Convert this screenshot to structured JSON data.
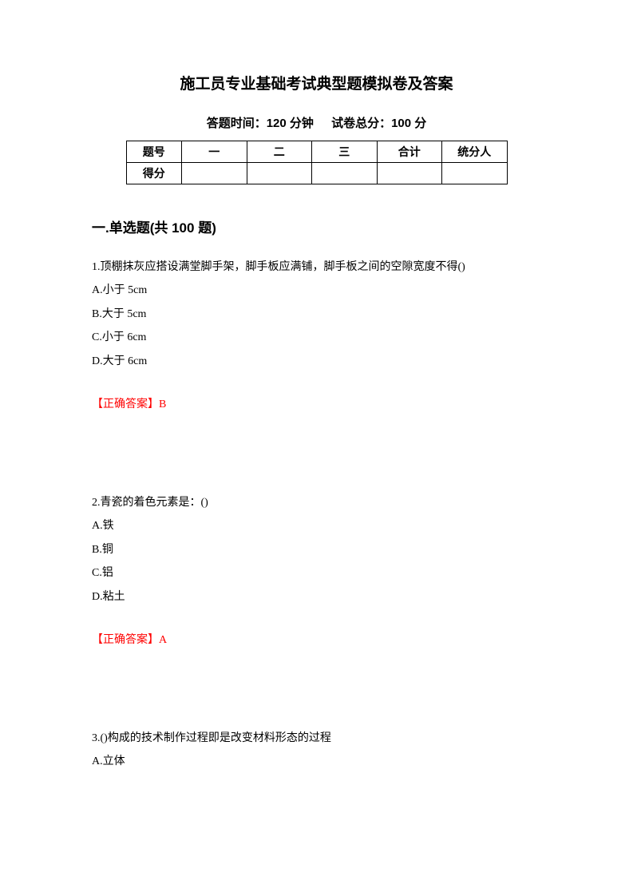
{
  "title": "施工员专业基础考试典型题模拟卷及答案",
  "subtitle": {
    "time_label": "答题时间：120 分钟",
    "score_label": "试卷总分：100 分"
  },
  "table": {
    "header": {
      "col0": "题号",
      "col1": "一",
      "col2": "二",
      "col3": "三",
      "col4": "合计",
      "col5": "统分人"
    },
    "row2_label": "得分"
  },
  "section_title": "一.单选题(共 100 题)",
  "q1": {
    "text": "1.顶棚抹灰应搭设满堂脚手架，脚手板应满铺，脚手板之间的空隙宽度不得()",
    "a": "A.小于 5cm",
    "b": "B.大于 5cm",
    "c": "C.小于 6cm",
    "d": "D.大于 6cm",
    "answer_label": "【正确答案】",
    "answer_value": "B"
  },
  "q2": {
    "text": "2.青瓷的着色元素是：()",
    "a": "A.铁",
    "b": "B.铜",
    "c": "C.铝",
    "d": "D.粘土",
    "answer_label": "【正确答案】",
    "answer_value": "A"
  },
  "q3": {
    "text": "3.()构成的技术制作过程即是改变材料形态的过程",
    "a": "A.立体"
  }
}
